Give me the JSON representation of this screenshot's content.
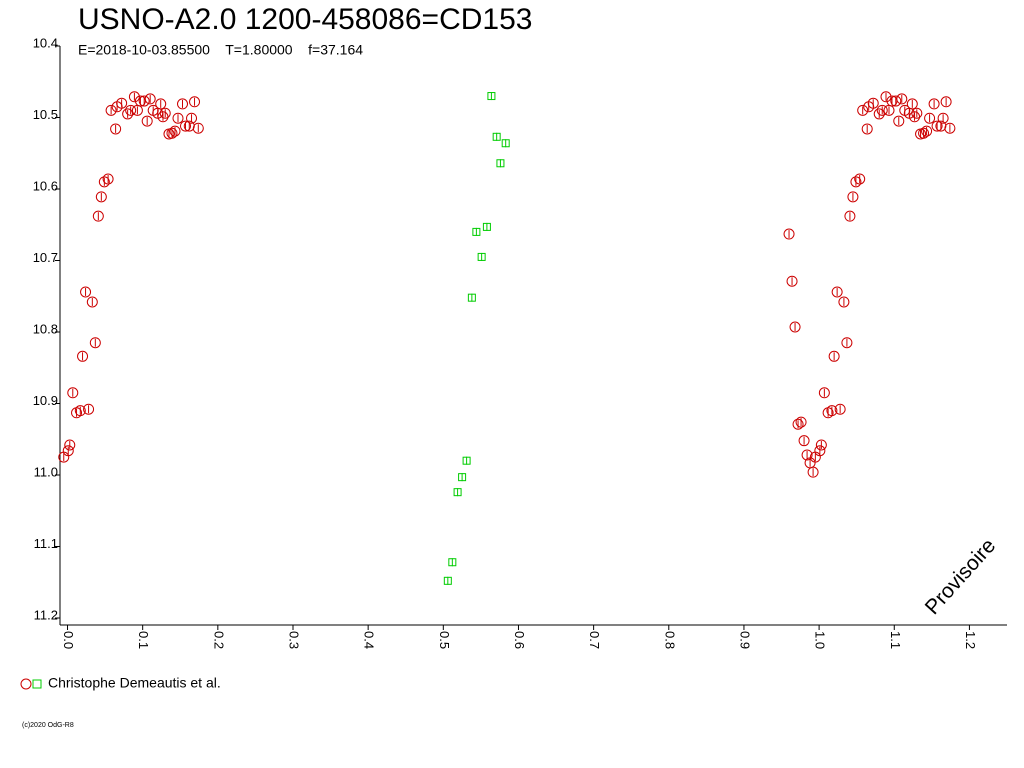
{
  "chart_data": {
    "type": "scatter",
    "title": "USNO-A2.0 1200-458086=CD153",
    "subtitle": "E=2018-10-03.85500    T=1.80000    f=37.164",
    "annotation": "Provisoire",
    "legend_label": "Christophe Demeautis et al.",
    "footer": "(c)2020 OdG-R8",
    "xlim": [
      -0.01,
      1.25
    ],
    "ylim": [
      10.4,
      11.2
    ],
    "y_inverted": true,
    "xticks": [
      {
        "value": 0,
        "label": "0.0"
      },
      0.1,
      0.2,
      0.3,
      0.4,
      0.5,
      0.6,
      0.7,
      0.8,
      0.9,
      {
        "value": 1,
        "label": "1.0"
      },
      1.1,
      1.2
    ],
    "yticks": [
      10.4,
      10.5,
      10.6,
      10.7,
      10.8,
      10.9,
      {
        "value": 11,
        "label": "11.0"
      },
      11.1,
      11.2
    ],
    "series": [
      {
        "marker": "circle",
        "color": "#cc0000",
        "x": [
          -0.005,
          0.001,
          0.003,
          0.007,
          0.012,
          0.017,
          0.02,
          0.024,
          0.028,
          0.033,
          0.037,
          0.041,
          0.045,
          0.049,
          0.054,
          0.058,
          0.064,
          0.066,
          0.072,
          0.08,
          0.084,
          0.089,
          0.093,
          0.097,
          0.102,
          0.106,
          0.11,
          0.114,
          0.12,
          0.124,
          0.127,
          0.13,
          0.135,
          0.139,
          0.143,
          0.147,
          0.153,
          0.157,
          0.162,
          0.165,
          0.169,
          0.174,
          0.96,
          0.964,
          0.968,
          0.972,
          0.976,
          0.98,
          0.984,
          0.988,
          0.992,
          0.995,
          1.001,
          1.003,
          1.007,
          1.012,
          1.017,
          1.02,
          1.024,
          1.028,
          1.033,
          1.037,
          1.041,
          1.045,
          1.049,
          1.054,
          1.058,
          1.064,
          1.066,
          1.072,
          1.08,
          1.084,
          1.089,
          1.093,
          1.097,
          1.102,
          1.106,
          1.11,
          1.114,
          1.12,
          1.124,
          1.127,
          1.13,
          1.135,
          1.139,
          1.143,
          1.147,
          1.153,
          1.157,
          1.162,
          1.165,
          1.169,
          1.174
        ],
        "values": [
          10.975,
          10.966,
          10.958,
          10.885,
          10.913,
          10.91,
          10.834,
          10.744,
          10.908,
          10.758,
          10.815,
          10.638,
          10.611,
          10.59,
          10.586,
          10.49,
          10.516,
          10.485,
          10.48,
          10.495,
          10.49,
          10.471,
          10.49,
          10.477,
          10.477,
          10.505,
          10.474,
          10.49,
          10.494,
          10.481,
          10.499,
          10.494,
          10.523,
          10.522,
          10.519,
          10.501,
          10.481,
          10.512,
          10.512,
          10.501,
          10.478,
          10.515,
          10.663,
          10.729,
          10.793,
          10.929,
          10.926,
          10.952,
          10.972,
          10.983,
          10.996,
          10.975,
          10.966,
          10.958,
          10.885,
          10.913,
          10.91,
          10.834,
          10.744,
          10.908,
          10.758,
          10.815,
          10.638,
          10.611,
          10.59,
          10.586,
          10.49,
          10.516,
          10.485,
          10.48,
          10.495,
          10.49,
          10.471,
          10.49,
          10.477,
          10.477,
          10.505,
          10.474,
          10.49,
          10.494,
          10.481,
          10.499,
          10.494,
          10.523,
          10.522,
          10.519,
          10.501,
          10.481,
          10.512,
          10.512,
          10.501,
          10.478,
          10.515
        ]
      },
      {
        "marker": "square",
        "color": "#00cc00",
        "x": [
          0.506,
          0.512,
          0.519,
          0.525,
          0.531,
          0.538,
          0.544,
          0.551,
          0.558,
          0.564,
          0.571,
          0.576,
          0.583
        ],
        "values": [
          11.148,
          11.122,
          11.024,
          11.003,
          10.98,
          10.752,
          10.66,
          10.695,
          10.653,
          10.47,
          10.527,
          10.564,
          10.536
        ]
      }
    ]
  }
}
